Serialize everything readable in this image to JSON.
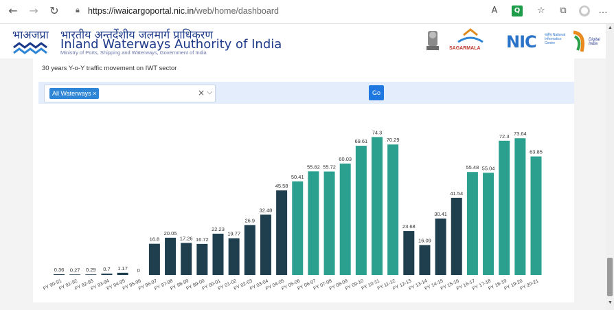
{
  "browser": {
    "url_domain": "https://iwaicargoportal.nic.in",
    "url_path": "/web/home/dashboard",
    "icons": [
      "back-icon",
      "forward-icon",
      "refresh-icon",
      "lock-icon",
      "read-aloud-icon",
      "extension-icon",
      "favorites-icon",
      "collections-icon",
      "profile-icon",
      "more-icon"
    ]
  },
  "header": {
    "title_hindi": "भारतीय अन्तर्देशीय जलमार्ग प्राधिकरण",
    "title_english": "Inland Waterways Authority of India",
    "subtitle": "Ministry of Ports, Shipping and Waterways, Government of India",
    "partners": {
      "sagarmala": "SAGARMALA",
      "nic": "NIC",
      "nic_small": "राष्ट्रीय National Informatics Centre",
      "digital_india": "Digital India"
    }
  },
  "dashboard": {
    "chart_title": "30 years Y-o-Y traffic movement on IWT sector",
    "filter": {
      "selected_chip": "All Waterways ×",
      "clear": "×",
      "caret": "⌵"
    },
    "go_label": "Go"
  },
  "colors": {
    "dark_bar": "#1f3f4f",
    "teal_bar": "#2ca08e",
    "accent": "#1f78e0"
  },
  "chart_data": {
    "type": "bar",
    "categories": [
      "FY 90-91",
      "FY 91-92",
      "FY 92-93",
      "FY 93-94",
      "FY 94-95",
      "FY 95-96",
      "FY 96-97",
      "FY 97-98",
      "FY 98-99",
      "FY 99-00",
      "FY 00-01",
      "FY 01-02",
      "FY 02-03",
      "FY 03-04",
      "FY 04-05",
      "FY 05-06",
      "FY 06-07",
      "FY 07-08",
      "FY 08-09",
      "FY 09-10",
      "FY 10-11",
      "FY 11-12",
      "FY 12-13",
      "FY 13-14",
      "FY 14-15",
      "FY 15-16",
      "FY 16-17",
      "FY 17-18",
      "FY 18-19",
      "FY 19-20",
      "FY 20-21"
    ],
    "values": [
      0.36,
      0.27,
      0.29,
      0.7,
      1.17,
      0,
      16.8,
      20.05,
      17.26,
      16.72,
      22.23,
      19.77,
      26.9,
      32.48,
      45.58,
      50.41,
      55.82,
      55.72,
      60.03,
      69.61,
      74.3,
      70.29,
      23.68,
      16.09,
      30.41,
      41.54,
      55.48,
      55.04,
      72.3,
      73.64,
      63.85
    ],
    "labels": [
      "0.36",
      "0.27",
      "0.29",
      "0.7",
      "1.17",
      "0",
      "16.8",
      "20.05",
      "17.26",
      "16.72",
      "22.23",
      "19.77",
      "26.9",
      "32.48",
      "45.58",
      "50.41",
      "55.82",
      "55.72",
      "60.03",
      "69.61",
      "74.3",
      "70.29",
      "23.68",
      "16.09",
      "30.41",
      "41.54",
      "55.48",
      "55.04",
      "72.3",
      "73.64",
      "63.85"
    ],
    "colors": [
      "dark",
      "dark",
      "dark",
      "dark",
      "dark",
      "dark",
      "dark",
      "dark",
      "dark",
      "dark",
      "dark",
      "dark",
      "dark",
      "dark",
      "dark",
      "teal",
      "teal",
      "teal",
      "teal",
      "teal",
      "teal",
      "teal",
      "dark",
      "dark",
      "dark",
      "dark",
      "teal",
      "teal",
      "teal",
      "teal",
      "teal"
    ],
    "ylim": [
      0,
      80
    ],
    "grid": false
  }
}
